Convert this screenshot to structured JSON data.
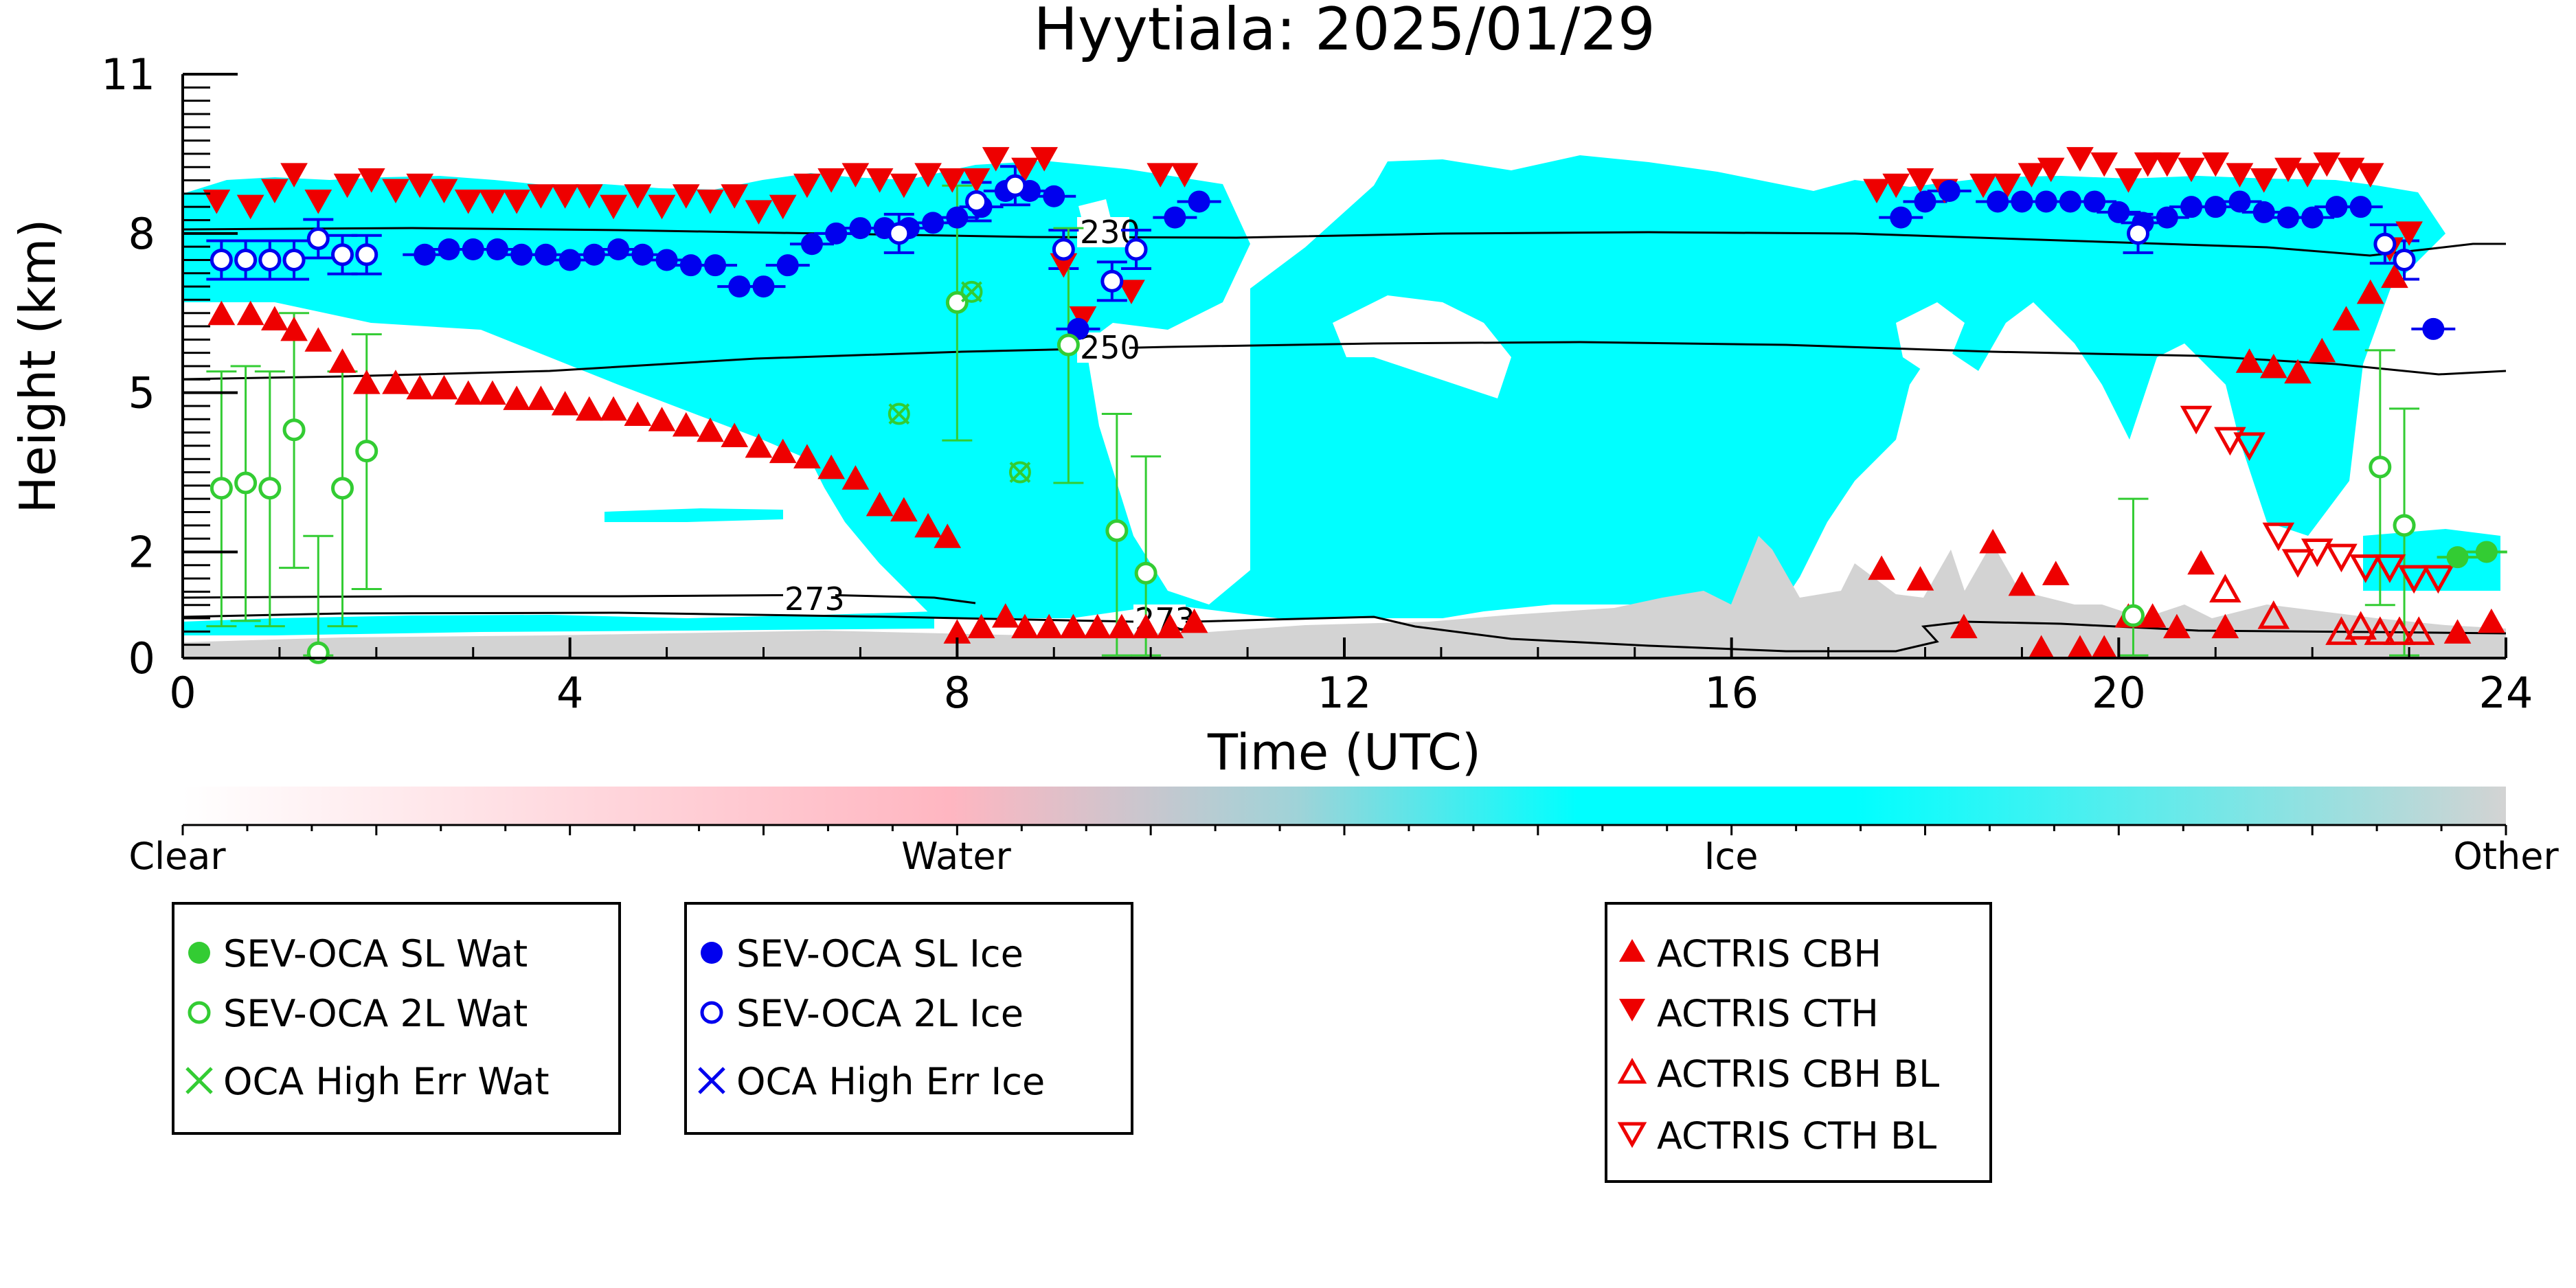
{
  "chart_data": {
    "type": "scatter",
    "title": "Hyytiala: 2025/01/29",
    "xlabel": "Time (UTC)",
    "ylabel": "Height (km)",
    "xlim": [
      0,
      24
    ],
    "ylim": [
      0,
      11
    ],
    "xticks": [
      "0",
      "4",
      "8",
      "12",
      "16",
      "20",
      "24"
    ],
    "yticks": [
      "0",
      "2",
      "5",
      "8",
      "11"
    ],
    "colorbar": {
      "labels": [
        "Clear",
        "Water",
        "Ice",
        "Other"
      ],
      "colors": [
        "#ffffff",
        "#ffb6c1",
        "#00ffff",
        "#d3d3d3"
      ]
    },
    "contour_labels": [
      "230",
      "250",
      "273",
      "273"
    ],
    "legends": [
      [
        {
          "label": "SEV-OCA SL Wat",
          "marker": "filled-circle",
          "color": "#33cc33"
        },
        {
          "label": "SEV-OCA 2L Wat",
          "marker": "open-circle",
          "color": "#33cc33"
        },
        {
          "label": "OCA High Err Wat",
          "marker": "x",
          "color": "#33cc33"
        }
      ],
      [
        {
          "label": "SEV-OCA SL Ice",
          "marker": "filled-circle",
          "color": "#0000ee"
        },
        {
          "label": "SEV-OCA 2L Ice",
          "marker": "open-circle",
          "color": "#0000ee"
        },
        {
          "label": "OCA High Err Ice",
          "marker": "x",
          "color": "#0000ee"
        }
      ],
      [
        {
          "label": "ACTRIS CBH",
          "marker": "triangle-up",
          "color": "#ee0000"
        },
        {
          "label": "ACTRIS CTH",
          "marker": "triangle-down",
          "color": "#ee0000"
        },
        {
          "label": "ACTRIS CBH BL",
          "marker": "open-triangle-up",
          "color": "#ee0000"
        },
        {
          "label": "ACTRIS CTH BL",
          "marker": "open-triangle-down",
          "color": "#ee0000"
        }
      ]
    ],
    "series": [
      {
        "name": "ACTRIS CTH",
        "points": [
          [
            0.35,
            8.6
          ],
          [
            0.7,
            8.5
          ],
          [
            0.95,
            8.8
          ],
          [
            1.15,
            9.1
          ],
          [
            1.4,
            8.6
          ],
          [
            1.7,
            8.9
          ],
          [
            1.95,
            9.0
          ],
          [
            2.2,
            8.8
          ],
          [
            2.45,
            8.9
          ],
          [
            2.7,
            8.8
          ],
          [
            2.95,
            8.6
          ],
          [
            3.2,
            8.6
          ],
          [
            3.45,
            8.6
          ],
          [
            3.7,
            8.7
          ],
          [
            3.95,
            8.7
          ],
          [
            4.2,
            8.7
          ],
          [
            4.45,
            8.5
          ],
          [
            4.7,
            8.7
          ],
          [
            4.95,
            8.5
          ],
          [
            5.2,
            8.7
          ],
          [
            5.45,
            8.6
          ],
          [
            5.7,
            8.7
          ],
          [
            5.95,
            8.4
          ],
          [
            6.2,
            8.5
          ],
          [
            6.45,
            8.9
          ],
          [
            6.7,
            9.0
          ],
          [
            6.95,
            9.1
          ],
          [
            7.2,
            9.0
          ],
          [
            7.45,
            8.9
          ],
          [
            7.7,
            9.1
          ],
          [
            7.95,
            9.0
          ],
          [
            8.2,
            9.0
          ],
          [
            8.4,
            9.4
          ],
          [
            8.7,
            9.2
          ],
          [
            8.9,
            9.4
          ],
          [
            9.1,
            7.4
          ],
          [
            9.3,
            6.4
          ],
          [
            9.8,
            6.9
          ],
          [
            10.1,
            9.1
          ],
          [
            10.35,
            9.1
          ],
          [
            17.5,
            8.8
          ],
          [
            17.7,
            8.9
          ],
          [
            17.95,
            9.0
          ],
          [
            18.2,
            8.8
          ],
          [
            18.6,
            8.9
          ],
          [
            18.85,
            8.9
          ],
          [
            19.1,
            9.1
          ],
          [
            19.3,
            9.2
          ],
          [
            19.6,
            9.4
          ],
          [
            19.85,
            9.3
          ],
          [
            20.1,
            9.0
          ],
          [
            20.3,
            9.3
          ],
          [
            20.5,
            9.3
          ],
          [
            20.75,
            9.2
          ],
          [
            21.0,
            9.3
          ],
          [
            21.25,
            9.1
          ],
          [
            21.5,
            9.0
          ],
          [
            21.75,
            9.2
          ],
          [
            21.95,
            9.1
          ],
          [
            22.15,
            9.3
          ],
          [
            22.4,
            9.2
          ],
          [
            22.6,
            9.1
          ],
          [
            22.8,
            7.7
          ],
          [
            23.0,
            8.0
          ]
        ]
      },
      {
        "name": "ACTRIS CBH",
        "points": [
          [
            0.4,
            6.5
          ],
          [
            0.7,
            6.5
          ],
          [
            0.95,
            6.4
          ],
          [
            1.15,
            6.2
          ],
          [
            1.4,
            6.0
          ],
          [
            1.65,
            5.6
          ],
          [
            1.9,
            5.2
          ],
          [
            2.2,
            5.2
          ],
          [
            2.45,
            5.1
          ],
          [
            2.7,
            5.1
          ],
          [
            2.95,
            5.0
          ],
          [
            3.2,
            5.0
          ],
          [
            3.45,
            4.9
          ],
          [
            3.7,
            4.9
          ],
          [
            3.95,
            4.8
          ],
          [
            4.2,
            4.7
          ],
          [
            4.45,
            4.7
          ],
          [
            4.7,
            4.6
          ],
          [
            4.95,
            4.5
          ],
          [
            5.2,
            4.4
          ],
          [
            5.45,
            4.3
          ],
          [
            5.7,
            4.2
          ],
          [
            5.95,
            4.0
          ],
          [
            6.2,
            3.9
          ],
          [
            6.45,
            3.8
          ],
          [
            6.7,
            3.6
          ],
          [
            6.95,
            3.4
          ],
          [
            7.2,
            2.9
          ],
          [
            7.45,
            2.8
          ],
          [
            7.7,
            2.5
          ],
          [
            7.9,
            2.3
          ],
          [
            8.0,
            0.5
          ],
          [
            8.25,
            0.6
          ],
          [
            8.5,
            0.8
          ],
          [
            8.7,
            0.6
          ],
          [
            8.95,
            0.6
          ],
          [
            9.2,
            0.6
          ],
          [
            9.45,
            0.6
          ],
          [
            9.7,
            0.6
          ],
          [
            9.95,
            0.6
          ],
          [
            10.2,
            0.6
          ],
          [
            10.45,
            0.7
          ],
          [
            17.55,
            1.7
          ],
          [
            17.95,
            1.5
          ],
          [
            18.4,
            0.6
          ],
          [
            18.7,
            2.2
          ],
          [
            19.0,
            1.4
          ],
          [
            19.2,
            0.2
          ],
          [
            19.35,
            1.6
          ],
          [
            19.6,
            0.2
          ],
          [
            19.85,
            0.2
          ],
          [
            20.1,
            0.8
          ],
          [
            20.35,
            0.8
          ],
          [
            20.6,
            0.6
          ],
          [
            20.85,
            1.8
          ],
          [
            21.1,
            0.6
          ],
          [
            21.35,
            5.6
          ],
          [
            21.6,
            5.5
          ],
          [
            21.85,
            5.4
          ],
          [
            22.1,
            5.8
          ],
          [
            22.35,
            6.4
          ],
          [
            22.6,
            6.9
          ],
          [
            22.85,
            7.2
          ],
          [
            23.5,
            0.5
          ],
          [
            23.85,
            0.7
          ]
        ]
      },
      {
        "name": "ACTRIS CBH BL",
        "points": [
          [
            21.1,
            1.3
          ],
          [
            21.6,
            0.8
          ],
          [
            22.3,
            0.5
          ],
          [
            22.5,
            0.6
          ],
          [
            22.7,
            0.5
          ],
          [
            22.9,
            0.5
          ],
          [
            23.1,
            0.5
          ]
        ]
      },
      {
        "name": "ACTRIS CTH BL",
        "points": [
          [
            20.8,
            4.5
          ],
          [
            21.15,
            4.1
          ],
          [
            21.35,
            4.0
          ],
          [
            21.65,
            2.3
          ],
          [
            21.85,
            1.8
          ],
          [
            22.05,
            2.0
          ],
          [
            22.3,
            1.9
          ],
          [
            22.55,
            1.7
          ],
          [
            22.8,
            1.7
          ],
          [
            23.05,
            1.5
          ],
          [
            23.3,
            1.5
          ]
        ]
      },
      {
        "name": "SEV-OCA SL Ice",
        "points": [
          [
            2.5,
            7.6
          ],
          [
            2.75,
            7.7
          ],
          [
            3.0,
            7.7
          ],
          [
            3.25,
            7.7
          ],
          [
            3.5,
            7.6
          ],
          [
            3.75,
            7.6
          ],
          [
            4.0,
            7.5
          ],
          [
            4.25,
            7.6
          ],
          [
            4.5,
            7.7
          ],
          [
            4.75,
            7.6
          ],
          [
            5.0,
            7.5
          ],
          [
            5.25,
            7.4
          ],
          [
            5.5,
            7.4
          ],
          [
            5.75,
            7.0
          ],
          [
            6.0,
            7.0
          ],
          [
            6.25,
            7.4
          ],
          [
            6.5,
            7.8
          ],
          [
            6.75,
            8.0
          ],
          [
            7.0,
            8.1
          ],
          [
            7.25,
            8.1
          ],
          [
            7.5,
            8.1
          ],
          [
            7.75,
            8.2
          ],
          [
            8.0,
            8.3
          ],
          [
            8.25,
            8.5
          ],
          [
            8.5,
            8.8
          ],
          [
            8.75,
            8.8
          ],
          [
            9.0,
            8.7
          ],
          [
            9.25,
            6.2
          ],
          [
            10.25,
            8.3
          ],
          [
            10.5,
            8.6
          ],
          [
            17.75,
            8.3
          ],
          [
            18.0,
            8.6
          ],
          [
            18.25,
            8.8
          ],
          [
            18.75,
            8.6
          ],
          [
            19.0,
            8.6
          ],
          [
            19.25,
            8.6
          ],
          [
            19.5,
            8.6
          ],
          [
            19.75,
            8.6
          ],
          [
            20.0,
            8.4
          ],
          [
            20.25,
            8.2
          ],
          [
            20.5,
            8.3
          ],
          [
            20.75,
            8.5
          ],
          [
            21.0,
            8.5
          ],
          [
            21.25,
            8.6
          ],
          [
            21.5,
            8.4
          ],
          [
            21.75,
            8.3
          ],
          [
            22.0,
            8.3
          ],
          [
            22.25,
            8.5
          ],
          [
            22.5,
            8.5
          ],
          [
            23.25,
            6.2
          ]
        ]
      },
      {
        "name": "SEV-OCA 2L Ice",
        "points": [
          [
            0.4,
            7.5
          ],
          [
            0.65,
            7.5
          ],
          [
            0.9,
            7.5
          ],
          [
            1.15,
            7.5
          ],
          [
            1.4,
            7.9
          ],
          [
            1.65,
            7.6
          ],
          [
            1.9,
            7.6
          ],
          [
            7.4,
            8.0
          ],
          [
            8.2,
            8.6
          ],
          [
            8.6,
            8.9
          ],
          [
            9.1,
            7.7
          ],
          [
            9.6,
            7.1
          ],
          [
            9.85,
            7.7
          ],
          [
            20.2,
            8.0
          ],
          [
            22.75,
            7.8
          ],
          [
            22.95,
            7.5
          ]
        ]
      },
      {
        "name": "SEV-OCA SL Wat",
        "points": [
          [
            23.5,
            1.9
          ],
          [
            23.8,
            2.0
          ]
        ]
      },
      {
        "name": "SEV-OCA 2L Wat",
        "points": [
          [
            0.4,
            3.2
          ],
          [
            0.65,
            3.3
          ],
          [
            0.9,
            3.2
          ],
          [
            1.15,
            4.3
          ],
          [
            1.4,
            0.1
          ],
          [
            1.65,
            3.2
          ],
          [
            1.9,
            3.9
          ],
          [
            8.0,
            6.7
          ],
          [
            9.15,
            5.9
          ],
          [
            9.65,
            2.4
          ],
          [
            9.95,
            1.6
          ],
          [
            20.15,
            0.8
          ],
          [
            22.7,
            3.6
          ],
          [
            22.95,
            2.5
          ]
        ]
      },
      {
        "name": "OCA High Err Wat",
        "points": [
          [
            7.4,
            4.6
          ],
          [
            8.15,
            6.9
          ],
          [
            8.65,
            3.5
          ]
        ]
      }
    ]
  }
}
